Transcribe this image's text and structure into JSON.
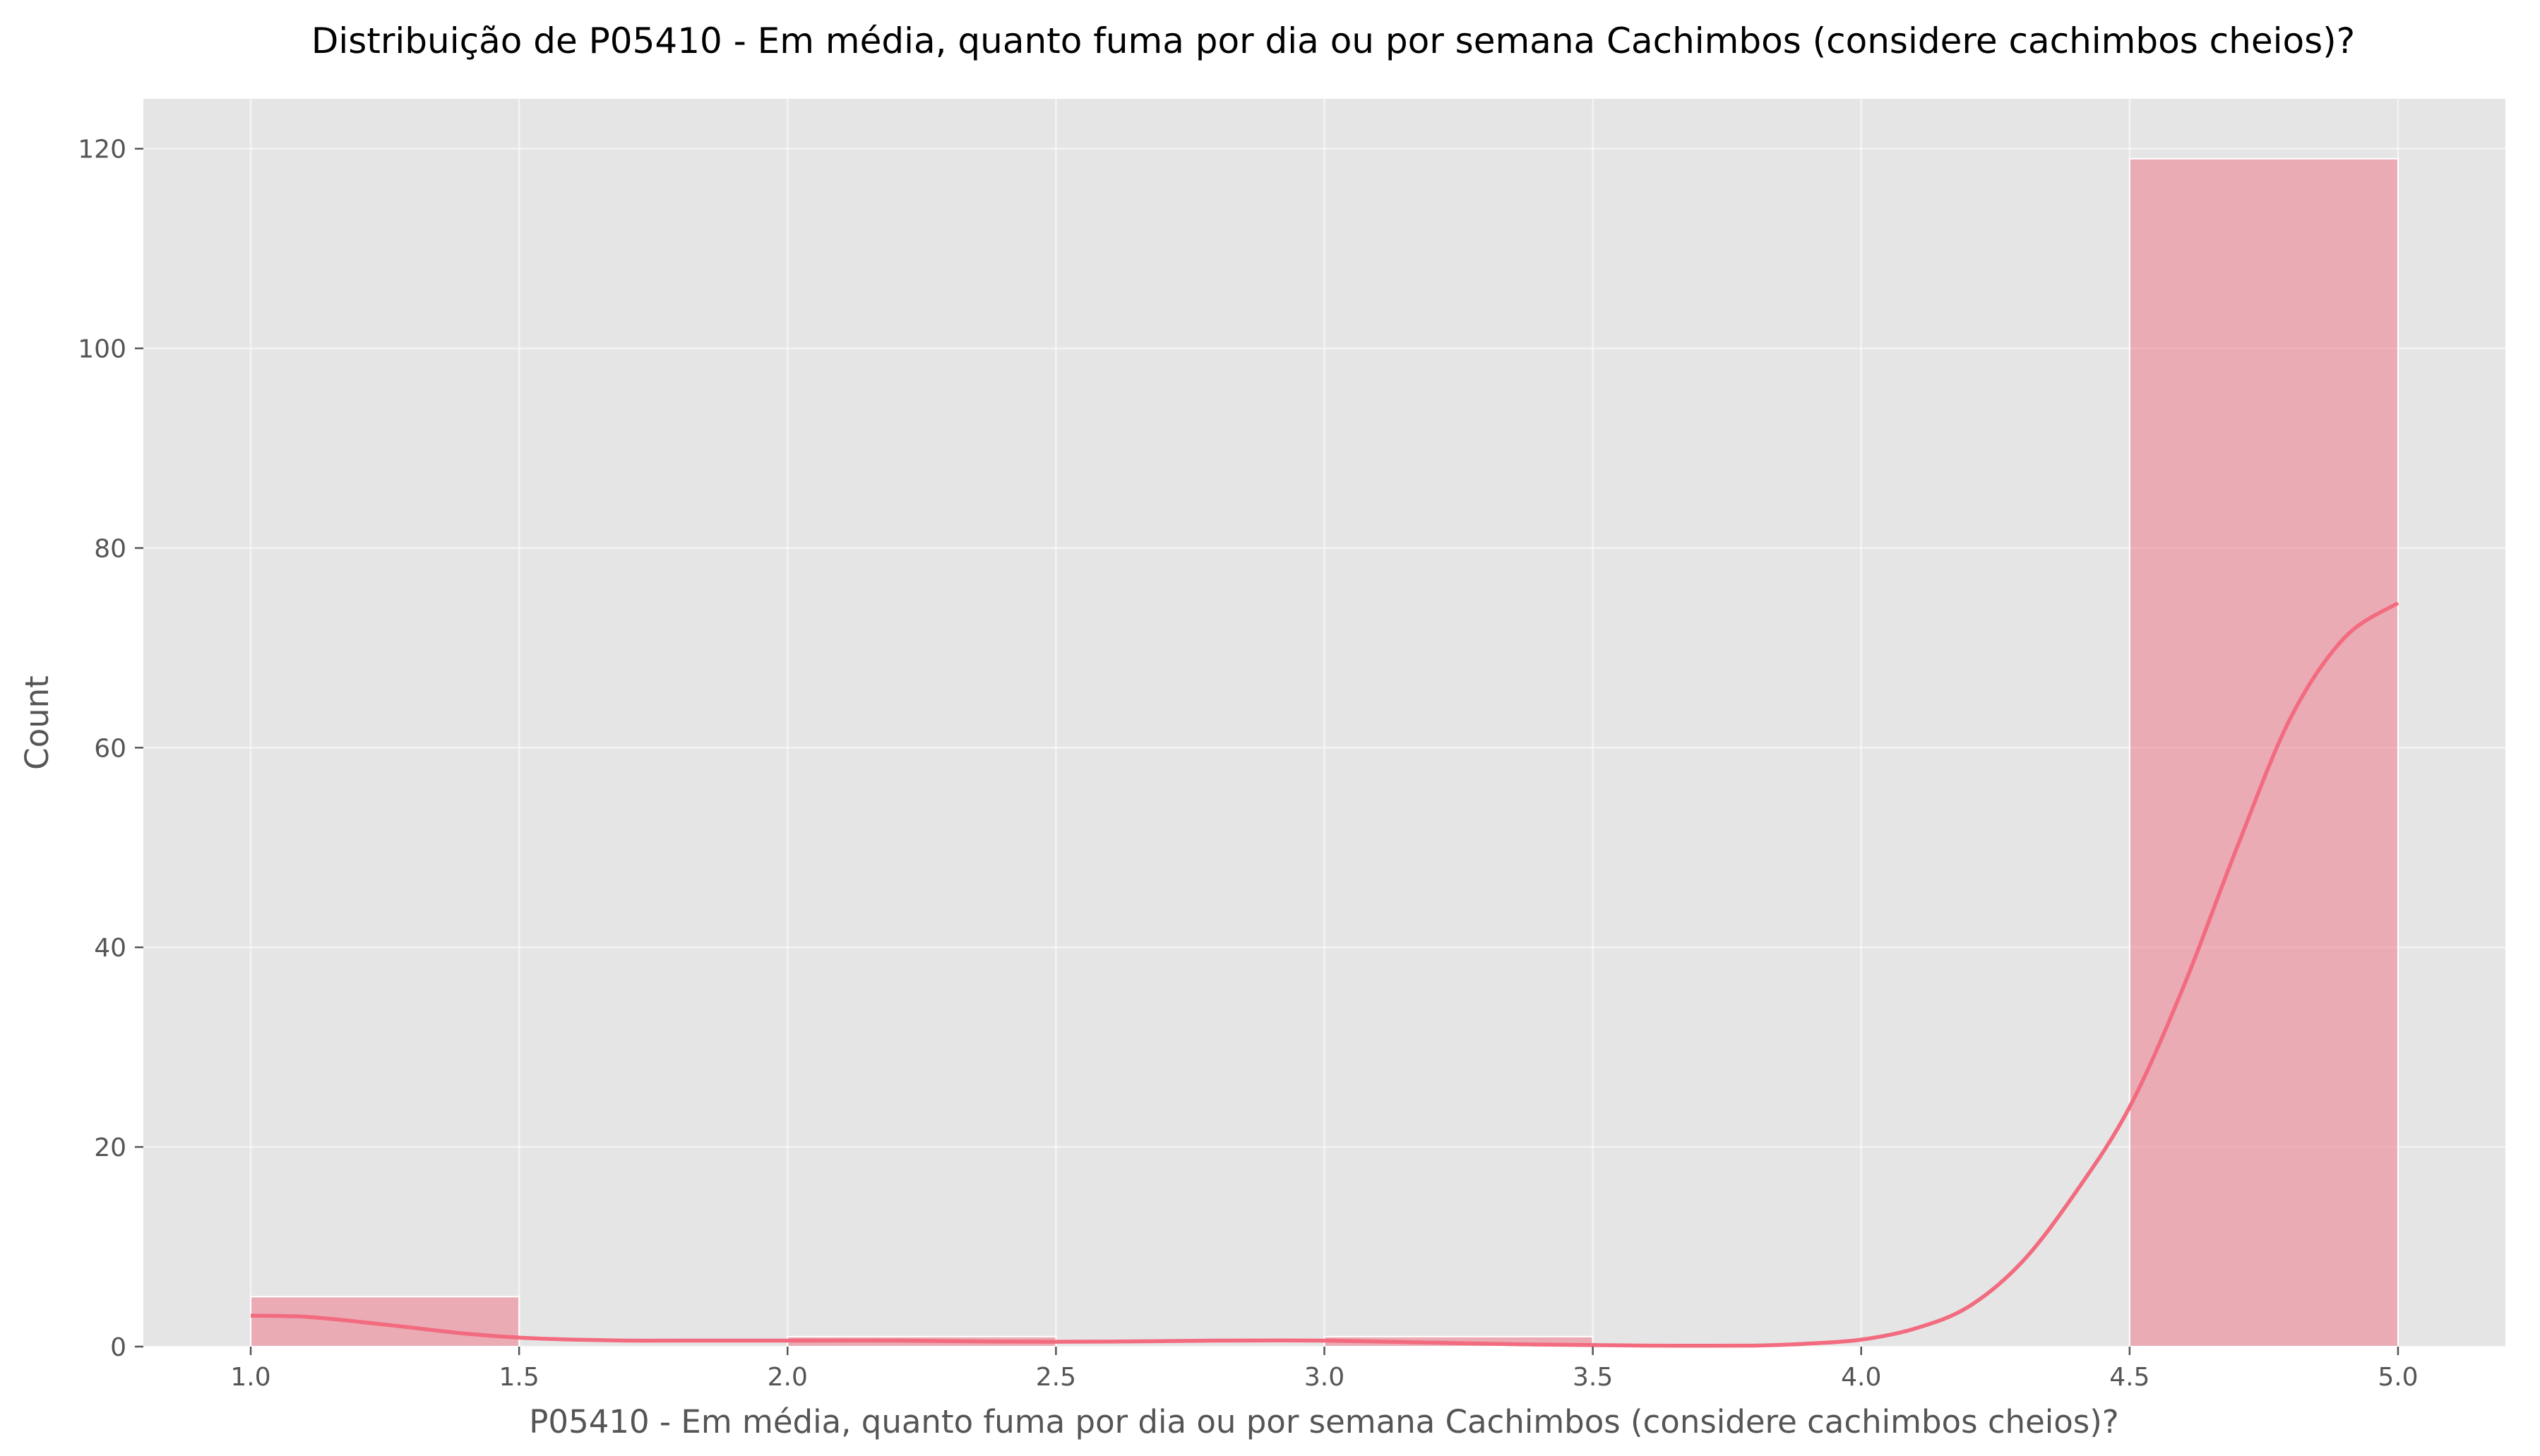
{
  "chart_data": {
    "type": "bar",
    "title": "Distribuição de P05410 - Em média, quanto fuma por dia ou por semana Cachimbos (considere cachimbos cheios)?",
    "xlabel": "P05410 - Em média, quanto fuma por dia ou por semana Cachimbos (considere cachimbos cheios)?",
    "ylabel": "Count",
    "xlim": [
      0.8,
      5.2
    ],
    "ylim": [
      0,
      125
    ],
    "xticks": [
      "1.0",
      "1.5",
      "2.0",
      "2.5",
      "3.0",
      "3.5",
      "4.0",
      "4.5",
      "5.0"
    ],
    "yticks": [
      "0",
      "20",
      "40",
      "60",
      "80",
      "100",
      "120"
    ],
    "grid": true,
    "bins": [
      {
        "x0": 1.0,
        "x1": 1.5,
        "count": 5
      },
      {
        "x0": 1.5,
        "x1": 2.0,
        "count": 0
      },
      {
        "x0": 2.0,
        "x1": 2.5,
        "count": 1
      },
      {
        "x0": 2.5,
        "x1": 3.0,
        "count": 0
      },
      {
        "x0": 3.0,
        "x1": 3.5,
        "count": 1
      },
      {
        "x0": 3.5,
        "x1": 4.0,
        "count": 0
      },
      {
        "x0": 4.0,
        "x1": 4.5,
        "count": 0
      },
      {
        "x0": 4.5,
        "x1": 5.0,
        "count": 119
      }
    ],
    "kde": {
      "x": [
        1.0,
        1.1,
        1.2,
        1.3,
        1.4,
        1.5,
        1.6,
        1.7,
        1.8,
        2.0,
        2.2,
        2.4,
        2.6,
        2.8,
        3.0,
        3.2,
        3.4,
        3.6,
        3.8,
        3.9,
        4.0,
        4.1,
        4.2,
        4.3,
        4.4,
        4.5,
        4.6,
        4.7,
        4.8,
        4.9,
        5.0
      ],
      "y": [
        3.1,
        3.0,
        2.5,
        1.9,
        1.3,
        0.9,
        0.7,
        0.6,
        0.6,
        0.6,
        0.6,
        0.5,
        0.5,
        0.6,
        0.6,
        0.4,
        0.2,
        0.1,
        0.1,
        0.3,
        0.7,
        1.8,
        4.0,
        8.5,
        15.5,
        24.0,
        36.0,
        50.0,
        63.0,
        71.0,
        74.5
      ]
    },
    "colors": {
      "bars": "#f07c8e",
      "kde": "#f26b7f",
      "plot_background": "#e5e5e5"
    }
  }
}
